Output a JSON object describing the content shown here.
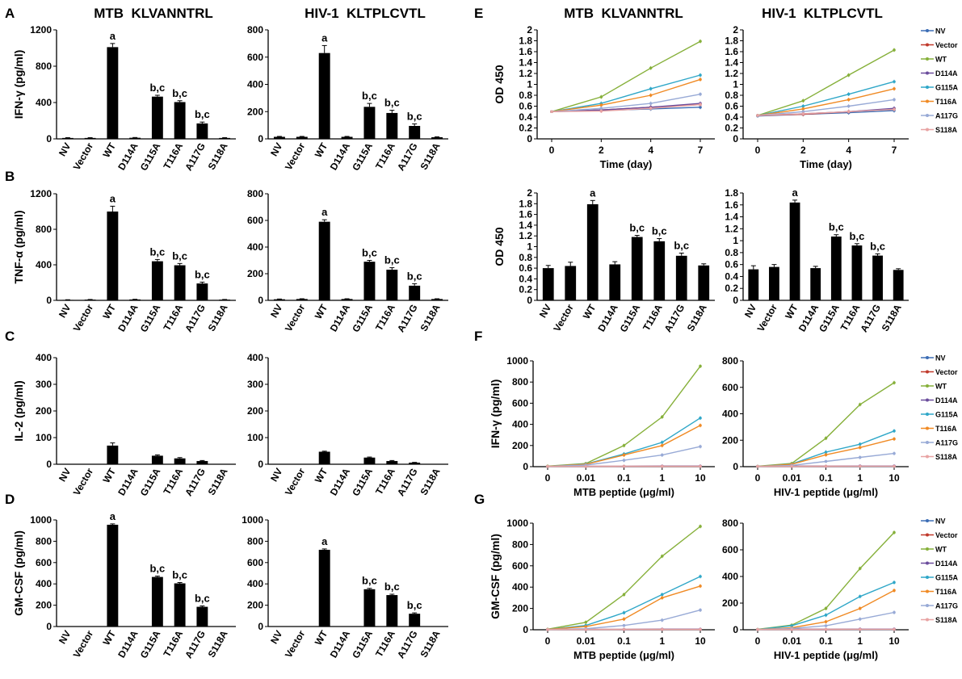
{
  "figure": {
    "panel_letters": [
      "A",
      "B",
      "C",
      "D",
      "E",
      "F",
      "G"
    ],
    "column_titles": [
      "MTB  KLVANNTRL",
      "HIV-1  KLTPLCVTL",
      "MTB  KLVANNTRL",
      "HIV-1  KLTPLCVTL"
    ],
    "legend_entries": [
      "NV",
      "Vector",
      "WT",
      "D114A",
      "G115A",
      "T116A",
      "A117G",
      "S118A"
    ],
    "series_colors": [
      "#3c6db5",
      "#c0392b",
      "#86b03a",
      "#6a4c9c",
      "#2fa7c8",
      "#f08a24",
      "#98aad6",
      "#e8a3a3"
    ],
    "bar_color": "#000000",
    "sig_a": "a",
    "sig_bc": "b,c"
  },
  "chart_data": [
    {
      "id": "A1",
      "panel": "A",
      "type": "bar",
      "title": "MTB  KLVANNTRL",
      "ylabel": "IFN-γ (pg/ml)",
      "ylim": [
        0,
        1200
      ],
      "yticks": [
        0,
        400,
        800,
        1200
      ],
      "categories": [
        "NV",
        "Vector",
        "WT",
        "D114A",
        "G115A",
        "T116A",
        "A117G",
        "S118A"
      ],
      "values": [
        10,
        10,
        1010,
        12,
        465,
        405,
        170,
        10
      ],
      "errors": [
        3,
        3,
        40,
        3,
        15,
        15,
        15,
        3
      ],
      "annotations": [
        "",
        "",
        "a",
        "",
        "b,c",
        "b,c",
        "b,c",
        ""
      ]
    },
    {
      "id": "A2",
      "panel": "A",
      "type": "bar",
      "title": "HIV-1  KLTPLCVTL",
      "ylabel": "",
      "ylim": [
        0,
        800
      ],
      "yticks": [
        0,
        200,
        400,
        600,
        800
      ],
      "categories": [
        "NV",
        "Vector",
        "WT",
        "D114A",
        "G115A",
        "T116A",
        "A117G",
        "S118A"
      ],
      "values": [
        15,
        15,
        630,
        15,
        235,
        190,
        95,
        12
      ],
      "errors": [
        3,
        3,
        55,
        3,
        25,
        20,
        15,
        3
      ],
      "annotations": [
        "",
        "",
        "a",
        "",
        "b,c",
        "b,c",
        "b,c",
        ""
      ]
    },
    {
      "id": "B1",
      "panel": "B",
      "type": "bar",
      "title": "",
      "ylabel": "TNF-α (pg/ml)",
      "ylim": [
        0,
        1200
      ],
      "yticks": [
        0,
        400,
        800,
        1200
      ],
      "categories": [
        "NV",
        "Vector",
        "WT",
        "D114A",
        "G115A",
        "T116A",
        "A117G",
        "S118A"
      ],
      "values": [
        5,
        8,
        1000,
        10,
        440,
        395,
        190,
        8
      ],
      "errors": [
        2,
        2,
        60,
        2,
        20,
        20,
        15,
        2
      ],
      "annotations": [
        "",
        "",
        "a",
        "",
        "b,c",
        "b,c",
        "b,c",
        ""
      ]
    },
    {
      "id": "B2",
      "panel": "B",
      "type": "bar",
      "title": "",
      "ylabel": "",
      "ylim": [
        0,
        800
      ],
      "yticks": [
        0,
        200,
        400,
        600,
        800
      ],
      "categories": [
        "NV",
        "Vector",
        "WT",
        "D114A",
        "G115A",
        "T116A",
        "A117G",
        "S118A"
      ],
      "values": [
        8,
        10,
        590,
        10,
        290,
        230,
        110,
        10
      ],
      "errors": [
        2,
        2,
        15,
        2,
        10,
        15,
        15,
        2
      ],
      "annotations": [
        "",
        "",
        "a",
        "",
        "b,c",
        "b,c",
        "b,c",
        ""
      ]
    },
    {
      "id": "C1",
      "panel": "C",
      "type": "bar",
      "title": "",
      "ylabel": "IL-2 (pg/ml)",
      "ylim": [
        0,
        400
      ],
      "yticks": [
        0,
        100,
        200,
        300,
        400
      ],
      "categories": [
        "NV",
        "Vector",
        "WT",
        "D114A",
        "G115A",
        "T116A",
        "A117G",
        "S118A"
      ],
      "values": [
        0,
        0,
        70,
        0,
        32,
        22,
        12,
        0
      ],
      "errors": [
        0,
        0,
        10,
        0,
        3,
        3,
        2,
        0
      ],
      "annotations": [
        "",
        "",
        "",
        "",
        "",
        "",
        "",
        ""
      ]
    },
    {
      "id": "C2",
      "panel": "C",
      "type": "bar",
      "title": "",
      "ylabel": "",
      "ylim": [
        0,
        400
      ],
      "yticks": [
        0,
        100,
        200,
        300,
        400
      ],
      "categories": [
        "NV",
        "Vector",
        "WT",
        "D114A",
        "G115A",
        "T116A",
        "A117G",
        "S118A"
      ],
      "values": [
        0,
        0,
        47,
        0,
        25,
        12,
        6,
        0
      ],
      "errors": [
        0,
        0,
        2,
        0,
        2,
        2,
        1,
        0
      ],
      "annotations": [
        "",
        "",
        "",
        "",
        "",
        "",
        "",
        ""
      ]
    },
    {
      "id": "D1",
      "panel": "D",
      "type": "bar",
      "title": "",
      "ylabel": "GM-CSF (pg/ml)",
      "ylim": [
        0,
        1000
      ],
      "yticks": [
        0,
        200,
        400,
        600,
        800,
        1000
      ],
      "categories": [
        "NV",
        "Vector",
        "WT",
        "D114A",
        "G115A",
        "T116A",
        "A117G",
        "S118A"
      ],
      "values": [
        0,
        0,
        955,
        0,
        465,
        405,
        185,
        0
      ],
      "errors": [
        0,
        0,
        8,
        0,
        8,
        8,
        8,
        0
      ],
      "annotations": [
        "",
        "",
        "a",
        "",
        "b,c",
        "b,c",
        "b,c",
        ""
      ]
    },
    {
      "id": "D2",
      "panel": "D",
      "type": "bar",
      "title": "",
      "ylabel": "",
      "ylim": [
        0,
        1000
      ],
      "yticks": [
        0,
        200,
        400,
        600,
        800,
        1000
      ],
      "categories": [
        "NV",
        "Vector",
        "WT",
        "D114A",
        "G115A",
        "T116A",
        "A117G",
        "S118A"
      ],
      "values": [
        0,
        0,
        720,
        0,
        350,
        295,
        120,
        0
      ],
      "errors": [
        0,
        0,
        8,
        0,
        8,
        8,
        8,
        0
      ],
      "annotations": [
        "",
        "",
        "a",
        "",
        "b,c",
        "b,c",
        "b,c",
        ""
      ]
    },
    {
      "id": "E1",
      "panel": "E",
      "type": "line",
      "title": "MTB  KLVANNTRL",
      "ylabel": "OD 450",
      "xlabel": "Time (day)",
      "ylim": [
        0,
        2
      ],
      "yticks": [
        0,
        0.2,
        0.4,
        0.6,
        0.8,
        1,
        1.2,
        1.4,
        1.6,
        1.8,
        2
      ],
      "xcats": [
        "0",
        "2",
        "4",
        "7"
      ],
      "series": [
        {
          "name": "NV",
          "values": [
            0.5,
            0.52,
            0.55,
            0.58
          ]
        },
        {
          "name": "Vector",
          "values": [
            0.5,
            0.53,
            0.58,
            0.63
          ]
        },
        {
          "name": "WT",
          "values": [
            0.5,
            0.77,
            1.3,
            1.79
          ]
        },
        {
          "name": "D114A",
          "values": [
            0.5,
            0.53,
            0.58,
            0.65
          ]
        },
        {
          "name": "G115A",
          "values": [
            0.5,
            0.65,
            0.92,
            1.17
          ]
        },
        {
          "name": "T116A",
          "values": [
            0.5,
            0.62,
            0.8,
            1.09
          ]
        },
        {
          "name": "A117G",
          "values": [
            0.5,
            0.56,
            0.65,
            0.82
          ]
        },
        {
          "name": "S118A",
          "values": [
            0.5,
            0.51,
            0.56,
            0.63
          ]
        }
      ]
    },
    {
      "id": "E2",
      "panel": "E",
      "type": "line",
      "title": "HIV-1  KLTPLCVTL",
      "ylabel": "",
      "xlabel": "Time (day)",
      "ylim": [
        0,
        2
      ],
      "yticks": [
        0,
        0.2,
        0.4,
        0.6,
        0.8,
        1,
        1.2,
        1.4,
        1.6,
        1.8,
        2
      ],
      "xcats": [
        "0",
        "2",
        "4",
        "7"
      ],
      "series": [
        {
          "name": "NV",
          "values": [
            0.42,
            0.45,
            0.48,
            0.52
          ]
        },
        {
          "name": "Vector",
          "values": [
            0.43,
            0.45,
            0.5,
            0.55
          ]
        },
        {
          "name": "WT",
          "values": [
            0.43,
            0.7,
            1.17,
            1.63
          ]
        },
        {
          "name": "D114A",
          "values": [
            0.43,
            0.46,
            0.5,
            0.56
          ]
        },
        {
          "name": "G115A",
          "values": [
            0.43,
            0.6,
            0.82,
            1.05
          ]
        },
        {
          "name": "T116A",
          "values": [
            0.43,
            0.55,
            0.72,
            0.92
          ]
        },
        {
          "name": "A117G",
          "values": [
            0.43,
            0.5,
            0.6,
            0.72
          ]
        },
        {
          "name": "S118A",
          "values": [
            0.43,
            0.46,
            0.5,
            0.54
          ]
        }
      ]
    },
    {
      "id": "E3",
      "panel": "E",
      "type": "bar",
      "title": "",
      "ylabel": "OD 450",
      "ylim": [
        0,
        2
      ],
      "yticks": [
        0,
        0.2,
        0.4,
        0.6,
        0.8,
        1,
        1.2,
        1.4,
        1.6,
        1.8,
        2
      ],
      "categories": [
        "NV",
        "Vector",
        "WT",
        "D114A",
        "G115A",
        "T116A",
        "A117G",
        "S118A"
      ],
      "values": [
        0.6,
        0.64,
        1.79,
        0.67,
        1.18,
        1.1,
        0.83,
        0.65
      ],
      "errors": [
        0.05,
        0.07,
        0.07,
        0.05,
        0.03,
        0.05,
        0.05,
        0.03
      ],
      "annotations": [
        "",
        "",
        "a",
        "",
        "b,c",
        "b,c",
        "b,c",
        ""
      ]
    },
    {
      "id": "E4",
      "panel": "E",
      "type": "bar",
      "title": "",
      "ylabel": "",
      "ylim": [
        0,
        1.8
      ],
      "yticks": [
        0,
        0.2,
        0.4,
        0.6,
        0.8,
        1,
        1.2,
        1.4,
        1.6,
        1.8
      ],
      "categories": [
        "NV",
        "Vector",
        "WT",
        "D114A",
        "G115A",
        "T116A",
        "A117G",
        "S118A"
      ],
      "values": [
        0.52,
        0.56,
        1.64,
        0.54,
        1.07,
        0.92,
        0.75,
        0.51
      ],
      "errors": [
        0.06,
        0.04,
        0.04,
        0.03,
        0.03,
        0.03,
        0.03,
        0.02
      ],
      "annotations": [
        "",
        "",
        "a",
        "",
        "b,c",
        "b,c",
        "b,c",
        ""
      ]
    },
    {
      "id": "F1",
      "panel": "F",
      "type": "line",
      "title": "",
      "ylabel": "IFN-γ (pg/ml)",
      "xlabel": "MTB peptide (μg/ml)",
      "ylim": [
        0,
        1000
      ],
      "yticks": [
        0,
        200,
        400,
        600,
        800,
        1000
      ],
      "xcats": [
        "0",
        "0.01",
        "0.1",
        "1",
        "10"
      ],
      "series": [
        {
          "name": "NV",
          "values": [
            2,
            2,
            2,
            2,
            2
          ]
        },
        {
          "name": "Vector",
          "values": [
            2,
            3,
            3,
            4,
            4
          ]
        },
        {
          "name": "WT",
          "values": [
            5,
            30,
            200,
            470,
            950
          ]
        },
        {
          "name": "D114A",
          "values": [
            2,
            3,
            3,
            5,
            5
          ]
        },
        {
          "name": "G115A",
          "values": [
            3,
            25,
            120,
            230,
            460
          ]
        },
        {
          "name": "T116A",
          "values": [
            3,
            22,
            110,
            200,
            390
          ]
        },
        {
          "name": "A117G",
          "values": [
            2,
            15,
            60,
            110,
            190
          ]
        },
        {
          "name": "S118A",
          "values": [
            2,
            2,
            3,
            3,
            3
          ]
        }
      ]
    },
    {
      "id": "F2",
      "panel": "F",
      "type": "line",
      "title": "",
      "ylabel": "",
      "xlabel": "HIV-1 peptide (μg/ml)",
      "ylim": [
        0,
        800
      ],
      "yticks": [
        0,
        200,
        400,
        600,
        800
      ],
      "xcats": [
        "0",
        "0.01",
        "0.1",
        "1",
        "10"
      ],
      "series": [
        {
          "name": "NV",
          "values": [
            2,
            2,
            2,
            2,
            2
          ]
        },
        {
          "name": "Vector",
          "values": [
            2,
            3,
            3,
            4,
            4
          ]
        },
        {
          "name": "WT",
          "values": [
            3,
            25,
            215,
            470,
            635
          ]
        },
        {
          "name": "D114A",
          "values": [
            2,
            3,
            3,
            5,
            5
          ]
        },
        {
          "name": "G115A",
          "values": [
            2,
            20,
            110,
            170,
            270
          ]
        },
        {
          "name": "T116A",
          "values": [
            2,
            18,
            90,
            145,
            210
          ]
        },
        {
          "name": "A117G",
          "values": [
            2,
            10,
            40,
            70,
            100
          ]
        },
        {
          "name": "S118A",
          "values": [
            2,
            2,
            3,
            3,
            3
          ]
        }
      ]
    },
    {
      "id": "G1",
      "panel": "G",
      "type": "line",
      "title": "",
      "ylabel": "GM-CSF (pg/ml)",
      "xlabel": "MTB peptide (μg/ml)",
      "ylim": [
        0,
        1000
      ],
      "yticks": [
        0,
        200,
        400,
        600,
        800,
        1000
      ],
      "xcats": [
        "0",
        "0.01",
        "0.1",
        "1",
        "10"
      ],
      "series": [
        {
          "name": "NV",
          "values": [
            2,
            2,
            2,
            2,
            2
          ]
        },
        {
          "name": "Vector",
          "values": [
            2,
            3,
            3,
            4,
            4
          ]
        },
        {
          "name": "WT",
          "values": [
            5,
            70,
            330,
            690,
            970
          ]
        },
        {
          "name": "D114A",
          "values": [
            2,
            3,
            3,
            5,
            5
          ]
        },
        {
          "name": "G115A",
          "values": [
            3,
            40,
            160,
            330,
            500
          ]
        },
        {
          "name": "T116A",
          "values": [
            3,
            30,
            100,
            300,
            410
          ]
        },
        {
          "name": "A117G",
          "values": [
            2,
            10,
            40,
            90,
            185
          ]
        },
        {
          "name": "S118A",
          "values": [
            2,
            2,
            3,
            3,
            3
          ]
        }
      ]
    },
    {
      "id": "G2",
      "panel": "G",
      "type": "line",
      "title": "",
      "ylabel": "",
      "xlabel": "HIV-1 peptide (μg/ml)",
      "ylim": [
        0,
        800
      ],
      "yticks": [
        0,
        200,
        400,
        600,
        800
      ],
      "xcats": [
        "0",
        "0.01",
        "0.1",
        "1",
        "10"
      ],
      "series": [
        {
          "name": "NV",
          "values": [
            2,
            2,
            2,
            2,
            2
          ]
        },
        {
          "name": "Vector",
          "values": [
            2,
            3,
            3,
            4,
            4
          ]
        },
        {
          "name": "WT",
          "values": [
            3,
            35,
            160,
            460,
            730
          ]
        },
        {
          "name": "D114A",
          "values": [
            2,
            3,
            3,
            5,
            5
          ]
        },
        {
          "name": "G115A",
          "values": [
            2,
            30,
            110,
            250,
            355
          ]
        },
        {
          "name": "T116A",
          "values": [
            2,
            15,
            60,
            160,
            295
          ]
        },
        {
          "name": "A117G",
          "values": [
            2,
            10,
            30,
            80,
            130
          ]
        },
        {
          "name": "S118A",
          "values": [
            2,
            2,
            3,
            3,
            3
          ]
        }
      ]
    }
  ]
}
